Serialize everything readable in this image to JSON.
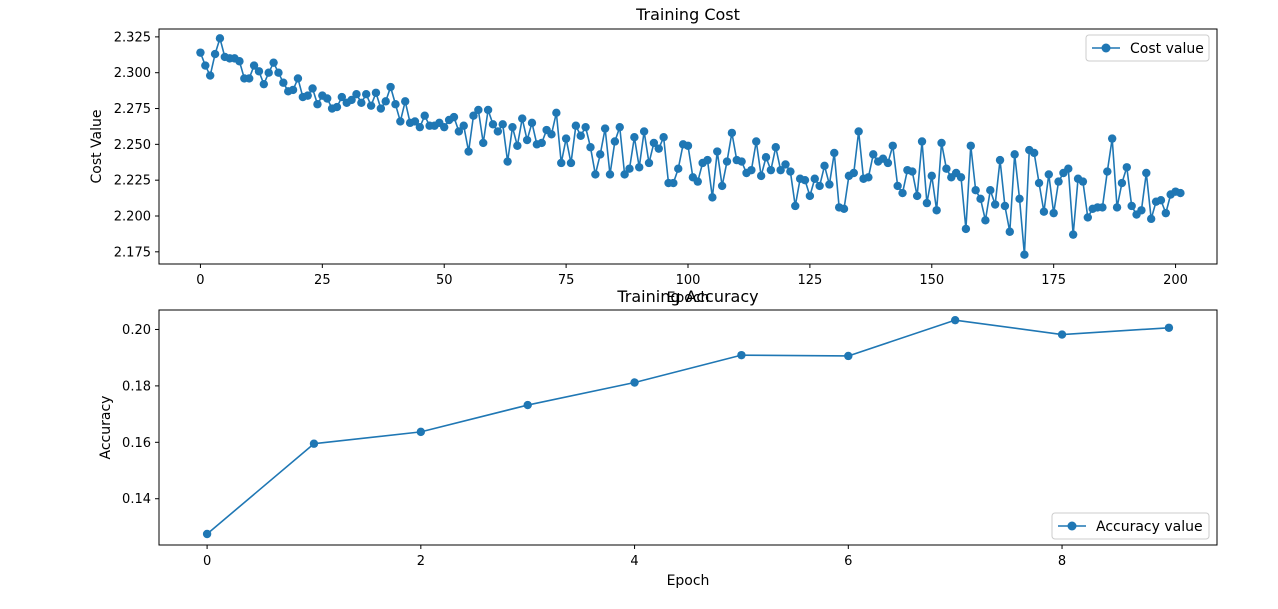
{
  "colors": {
    "series": "#1f77b4",
    "axes": "#000000",
    "legend_border": "#cccccc",
    "background": "#ffffff"
  },
  "chart_data": [
    {
      "type": "line",
      "title": "Training Cost",
      "xlabel": "Epoch",
      "ylabel": "Cost Value",
      "xlim": [
        -8.5,
        208.5
      ],
      "ylim": [
        2.1665,
        2.3305
      ],
      "xticks": [
        0,
        25,
        50,
        75,
        100,
        125,
        150,
        175,
        200
      ],
      "yticks": [
        2.175,
        2.2,
        2.225,
        2.25,
        2.275,
        2.3,
        2.325
      ],
      "ytick_labels": [
        "2.175",
        "2.200",
        "2.225",
        "2.250",
        "2.275",
        "2.300",
        "2.325"
      ],
      "grid": false,
      "legend_position": "top-right",
      "series": [
        {
          "name": "Cost value",
          "marker": "circle",
          "x_start": 0,
          "x_step": 1,
          "values": [
            2.314,
            2.305,
            2.298,
            2.313,
            2.324,
            2.311,
            2.31,
            2.31,
            2.308,
            2.296,
            2.296,
            2.305,
            2.301,
            2.292,
            2.3,
            2.307,
            2.3,
            2.293,
            2.287,
            2.288,
            2.296,
            2.283,
            2.284,
            2.289,
            2.278,
            2.284,
            2.282,
            2.275,
            2.276,
            2.283,
            2.279,
            2.281,
            2.285,
            2.279,
            2.285,
            2.277,
            2.286,
            2.275,
            2.28,
            2.29,
            2.278,
            2.266,
            2.28,
            2.265,
            2.266,
            2.262,
            2.27,
            2.263,
            2.263,
            2.265,
            2.262,
            2.267,
            2.269,
            2.259,
            2.263,
            2.245,
            2.27,
            2.274,
            2.251,
            2.274,
            2.264,
            2.259,
            2.264,
            2.238,
            2.262,
            2.249,
            2.268,
            2.253,
            2.265,
            2.25,
            2.251,
            2.26,
            2.257,
            2.272,
            2.237,
            2.254,
            2.237,
            2.263,
            2.256,
            2.262,
            2.248,
            2.229,
            2.243,
            2.261,
            2.229,
            2.252,
            2.262,
            2.229,
            2.233,
            2.255,
            2.234,
            2.259,
            2.237,
            2.251,
            2.247,
            2.255,
            2.223,
            2.223,
            2.233,
            2.25,
            2.249,
            2.227,
            2.224,
            2.237,
            2.239,
            2.213,
            2.245,
            2.221,
            2.238,
            2.258,
            2.239,
            2.238,
            2.23,
            2.232,
            2.252,
            2.228,
            2.241,
            2.232,
            2.248,
            2.232,
            2.236,
            2.231,
            2.207,
            2.226,
            2.225,
            2.214,
            2.226,
            2.221,
            2.235,
            2.222,
            2.244,
            2.206,
            2.205,
            2.228,
            2.23,
            2.259,
            2.226,
            2.227,
            2.243,
            2.238,
            2.24,
            2.237,
            2.249,
            2.221,
            2.216,
            2.232,
            2.231,
            2.214,
            2.252,
            2.209,
            2.228,
            2.204,
            2.251,
            2.233,
            2.227,
            2.23,
            2.227,
            2.191,
            2.249,
            2.218,
            2.212,
            2.197,
            2.218,
            2.208,
            2.239,
            2.207,
            2.189,
            2.243,
            2.212,
            2.173,
            2.246,
            2.244,
            2.223,
            2.203,
            2.229,
            2.202,
            2.224,
            2.23,
            2.233,
            2.187,
            2.226,
            2.224,
            2.199,
            2.205,
            2.206,
            2.206,
            2.231,
            2.254,
            2.206,
            2.223,
            2.234,
            2.207,
            2.201,
            2.204,
            2.23,
            2.198,
            2.21,
            2.211,
            2.202,
            2.215,
            2.217,
            2.216
          ]
        }
      ]
    },
    {
      "type": "line",
      "title": "Training Accuracy",
      "xlabel": "Epoch",
      "ylabel": "Accuracy",
      "xlim": [
        -0.45,
        9.45
      ],
      "ylim": [
        0.1236,
        0.2069
      ],
      "xticks": [
        0,
        2,
        4,
        6,
        8
      ],
      "yticks": [
        0.14,
        0.16,
        0.18,
        0.2
      ],
      "ytick_labels": [
        "0.14",
        "0.16",
        "0.18",
        "0.20"
      ],
      "grid": false,
      "legend_position": "bottom-right",
      "series": [
        {
          "name": "Accuracy value",
          "marker": "circle",
          "x": [
            0,
            1,
            2,
            3,
            4,
            5,
            6,
            7,
            8,
            9
          ],
          "values": [
            0.1275,
            0.1595,
            0.1637,
            0.1732,
            0.1812,
            0.1909,
            0.1906,
            0.2033,
            0.1982,
            0.2006
          ]
        }
      ]
    }
  ]
}
